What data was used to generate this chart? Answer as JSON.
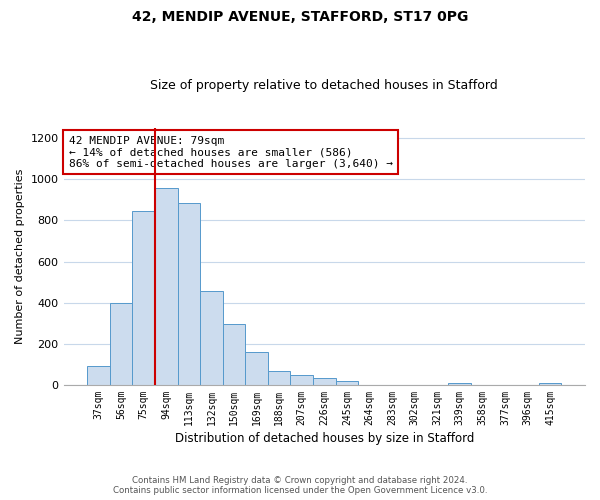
{
  "title": "42, MENDIP AVENUE, STAFFORD, ST17 0PG",
  "subtitle": "Size of property relative to detached houses in Stafford",
  "xlabel": "Distribution of detached houses by size in Stafford",
  "ylabel": "Number of detached properties",
  "bar_labels": [
    "37sqm",
    "56sqm",
    "75sqm",
    "94sqm",
    "113sqm",
    "132sqm",
    "150sqm",
    "169sqm",
    "188sqm",
    "207sqm",
    "226sqm",
    "245sqm",
    "264sqm",
    "283sqm",
    "302sqm",
    "321sqm",
    "339sqm",
    "358sqm",
    "377sqm",
    "396sqm",
    "415sqm"
  ],
  "bar_values": [
    90,
    400,
    845,
    960,
    885,
    455,
    295,
    160,
    70,
    50,
    32,
    18,
    0,
    0,
    0,
    0,
    8,
    0,
    0,
    0,
    8
  ],
  "bar_color": "#ccdcee",
  "bar_edge_color": "#5599cc",
  "property_line_x": 2.5,
  "annotation_title": "42 MENDIP AVENUE: 79sqm",
  "annotation_line1": "← 14% of detached houses are smaller (586)",
  "annotation_line2": "86% of semi-detached houses are larger (3,640) →",
  "annotation_box_color": "#ffffff",
  "annotation_box_edge": "#cc0000",
  "vline_color": "#cc0000",
  "ylim": [
    0,
    1250
  ],
  "yticks": [
    0,
    200,
    400,
    600,
    800,
    1000,
    1200
  ],
  "footer_line1": "Contains HM Land Registry data © Crown copyright and database right 2024.",
  "footer_line2": "Contains public sector information licensed under the Open Government Licence v3.0.",
  "background_color": "#ffffff",
  "grid_color": "#c8d8ea"
}
